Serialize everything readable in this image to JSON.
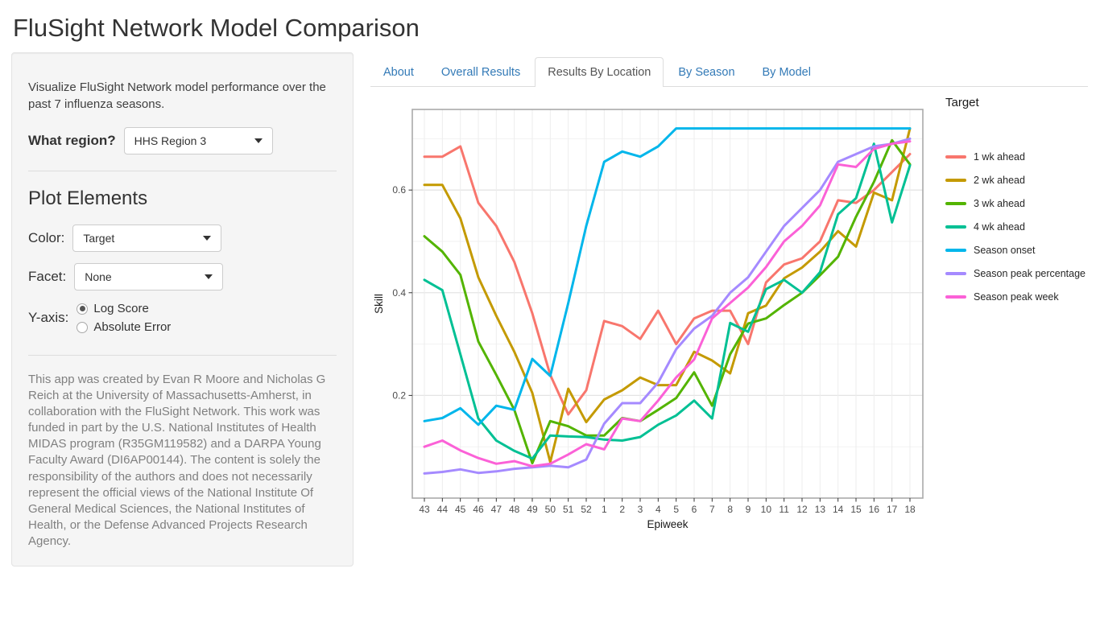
{
  "page_title": "FluSight Network Model Comparison",
  "sidebar": {
    "intro": "Visualize FluSight Network model performance over the past 7 influenza seasons.",
    "region_label": "What region?",
    "region_value": "HHS Region 3",
    "plot_elements_heading": "Plot Elements",
    "color_label": "Color:",
    "color_value": "Target",
    "facet_label": "Facet:",
    "facet_value": "None",
    "yaxis_label": "Y-axis:",
    "yaxis_options": [
      {
        "label": "Log Score",
        "selected": true
      },
      {
        "label": "Absolute Error",
        "selected": false
      }
    ],
    "attribution": "This app was created by Evan R Moore and Nicholas G Reich at the University of Massachusetts-Amherst, in collaboration with the FluSight Network. This work was funded in part by the U.S. National Institutes of Health MIDAS program (R35GM119582) and a DARPA Young Faculty Award (DI6AP00144). The content is solely the responsibility of the authors and does not necessarily represent the official views of the National Institute Of General Medical Sciences, the National Institutes of Health, or the Defense Advanced Projects Research Agency."
  },
  "tabs": [
    {
      "label": "About",
      "active": false
    },
    {
      "label": "Overall Results",
      "active": false
    },
    {
      "label": "Results By Location",
      "active": true
    },
    {
      "label": "By Season",
      "active": false
    },
    {
      "label": "By Model",
      "active": false
    }
  ],
  "chart_data": {
    "type": "line",
    "title": "",
    "xlabel": "Epiweek",
    "ylabel": "Skill",
    "legend_title": "Target",
    "legend_position": "right",
    "grid": true,
    "x_categories": [
      "43",
      "44",
      "45",
      "46",
      "47",
      "48",
      "49",
      "50",
      "51",
      "52",
      "1",
      "2",
      "3",
      "4",
      "5",
      "6",
      "7",
      "8",
      "9",
      "10",
      "11",
      "12",
      "13",
      "14",
      "15",
      "16",
      "17",
      "18"
    ],
    "ylim": [
      0,
      0.757
    ],
    "yticks": [
      0.2,
      0.4,
      0.6
    ],
    "yticks_minor": [
      0.1,
      0.3,
      0.5,
      0.7
    ],
    "series": [
      {
        "name": "1 wk ahead",
        "color": "#F8766D",
        "values": [
          0.665,
          0.665,
          0.685,
          0.575,
          0.53,
          0.46,
          0.36,
          0.24,
          0.163,
          0.21,
          0.345,
          0.335,
          0.31,
          0.365,
          0.3,
          0.35,
          0.365,
          0.365,
          0.3,
          0.42,
          0.455,
          0.467,
          0.5,
          0.58,
          0.575,
          0.6,
          0.635,
          0.67
        ]
      },
      {
        "name": "2 wk ahead",
        "color": "#C49A00",
        "values": [
          0.61,
          0.61,
          0.545,
          0.43,
          0.355,
          0.285,
          0.205,
          0.07,
          0.213,
          0.148,
          0.192,
          0.21,
          0.235,
          0.22,
          0.22,
          0.285,
          0.268,
          0.243,
          0.36,
          0.375,
          0.428,
          0.449,
          0.48,
          0.52,
          0.49,
          0.595,
          0.58,
          0.72
        ]
      },
      {
        "name": "3 wk ahead",
        "color": "#53B400",
        "values": [
          0.51,
          0.48,
          0.435,
          0.305,
          0.24,
          0.172,
          0.068,
          0.15,
          0.14,
          0.122,
          0.122,
          0.156,
          0.15,
          0.172,
          0.195,
          0.245,
          0.18,
          0.28,
          0.34,
          0.35,
          0.376,
          0.4,
          0.434,
          0.47,
          0.548,
          0.616,
          0.697,
          0.65
        ]
      },
      {
        "name": "4 wk ahead",
        "color": "#00C094",
        "values": [
          0.425,
          0.405,
          0.28,
          0.155,
          0.112,
          0.092,
          0.077,
          0.122,
          0.12,
          0.119,
          0.114,
          0.112,
          0.119,
          0.143,
          0.161,
          0.19,
          0.155,
          0.341,
          0.324,
          0.407,
          0.425,
          0.4,
          0.44,
          0.553,
          0.584,
          0.69,
          0.537,
          0.648
        ]
      },
      {
        "name": "Season onset",
        "color": "#00B6EB",
        "values": [
          0.15,
          0.156,
          0.175,
          0.143,
          0.18,
          0.172,
          0.271,
          0.238,
          0.38,
          0.53,
          0.655,
          0.675,
          0.665,
          0.685,
          0.72,
          0.72,
          0.72,
          0.72,
          0.72,
          0.72,
          0.72,
          0.72,
          0.72,
          0.72,
          0.72,
          0.72,
          0.72,
          0.72
        ]
      },
      {
        "name": "Season peak percentage",
        "color": "#A58AFF",
        "values": [
          0.048,
          0.051,
          0.056,
          0.049,
          0.052,
          0.057,
          0.06,
          0.063,
          0.06,
          0.075,
          0.145,
          0.185,
          0.185,
          0.225,
          0.29,
          0.33,
          0.355,
          0.4,
          0.43,
          0.48,
          0.53,
          0.565,
          0.6,
          0.655,
          0.67,
          0.685,
          0.69,
          0.7
        ]
      },
      {
        "name": "Season peak week",
        "color": "#FB61D7",
        "values": [
          0.1,
          0.112,
          0.093,
          0.078,
          0.067,
          0.072,
          0.062,
          0.067,
          0.085,
          0.105,
          0.095,
          0.155,
          0.15,
          0.19,
          0.235,
          0.27,
          0.35,
          0.38,
          0.41,
          0.45,
          0.5,
          0.53,
          0.57,
          0.65,
          0.645,
          0.68,
          0.69,
          0.695
        ]
      }
    ],
    "colors": {
      "grid_major": "#e4e4e4",
      "grid_minor": "#f2f2f2",
      "grid_vertical": "#ededed",
      "panel_border": "#aaaaaa",
      "tick": "#333333",
      "tick_label": "#4d4d4d",
      "axis_title": "#1a1a1a"
    }
  }
}
